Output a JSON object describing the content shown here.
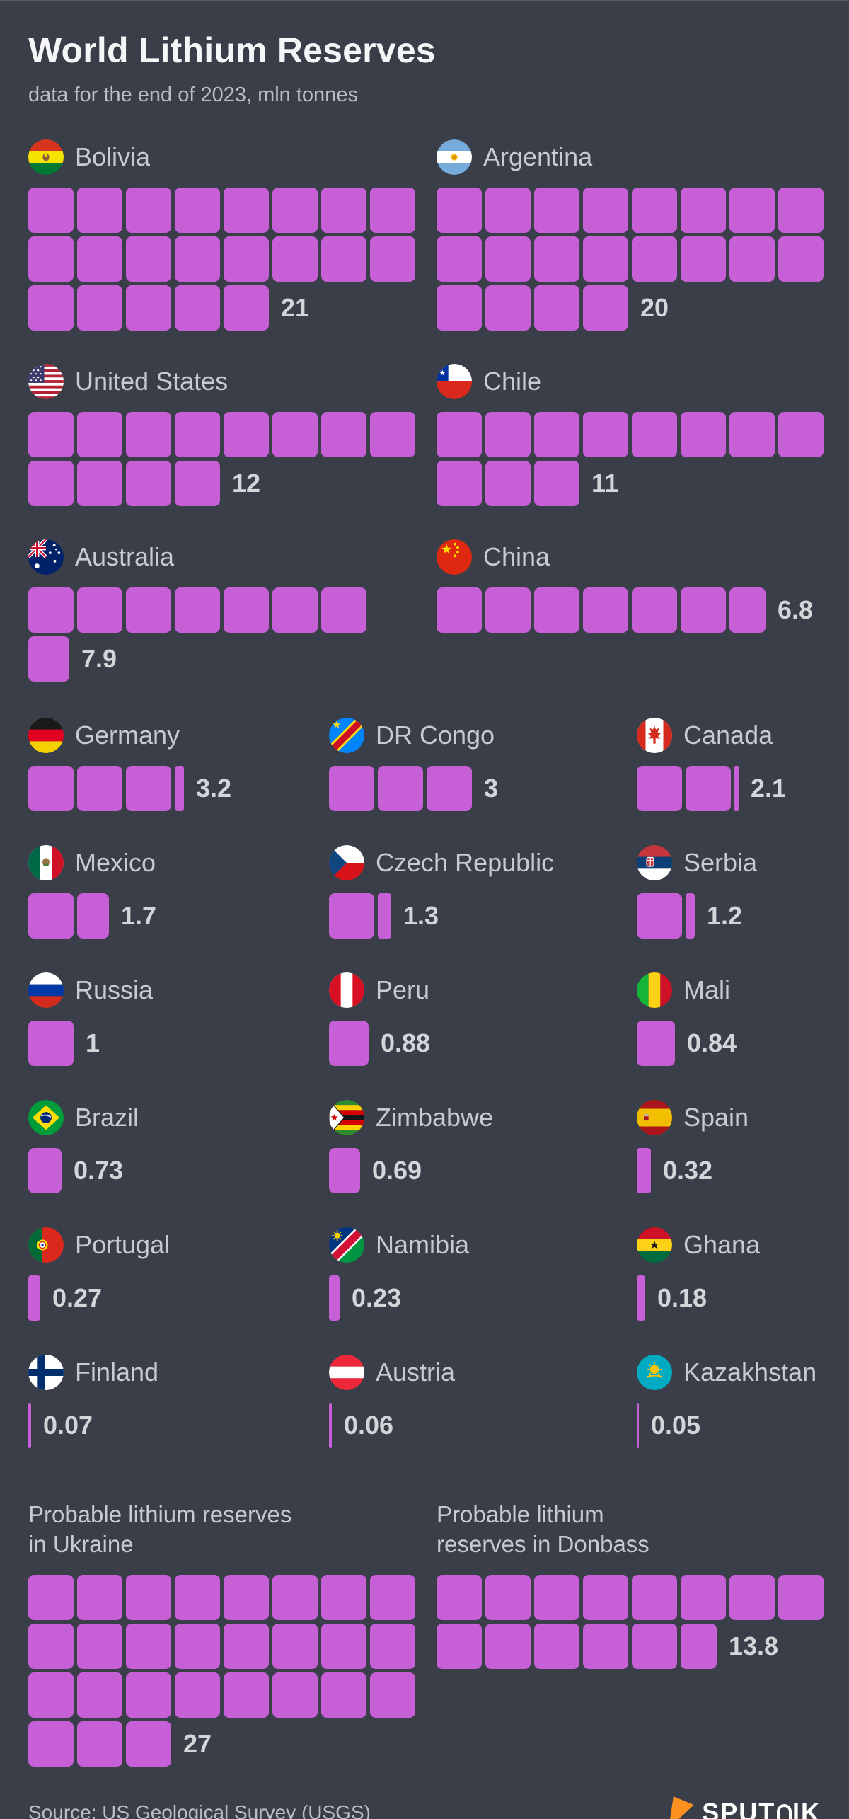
{
  "header": {
    "title": "World Lithium Reserves",
    "subtitle": "data for the end of 2023, mln tonnes"
  },
  "footer": {
    "source": "Source: US Geological Survey (USGS)",
    "brand": {
      "full": "SPUTNIK",
      "before": "SPUT",
      "after": "IK",
      "logo_icon": "sputnik-kite-icon"
    }
  },
  "colors": {
    "background": "#3a3e48",
    "square": "#c75fd6",
    "title": "#f5f6f8",
    "label": "#c7cad0",
    "value": "#d3d5d9",
    "subtitle": "#b9bdc4",
    "brand_orange": "#fb9021"
  },
  "chart_data": {
    "type": "waffle",
    "title": "World Lithium Reserves",
    "subtitle": "data for the end of 2023, mln tonnes",
    "unit": "mln tonnes",
    "square_value": 1,
    "layout": {
      "big_columns": 2,
      "small_columns": 3,
      "per_row_default": 8,
      "legend": "off",
      "grid": "off"
    },
    "countries": [
      {
        "name": "Bolivia",
        "flag": "bolivia",
        "flag_icon": "flag-bolivia-icon",
        "value": 21,
        "display": "21",
        "per_row": 8,
        "size": "big"
      },
      {
        "name": "Argentina",
        "flag": "argentina",
        "flag_icon": "flag-argentina-icon",
        "value": 20,
        "display": "20",
        "per_row": 8,
        "size": "big"
      },
      {
        "name": "United States",
        "flag": "us",
        "flag_icon": "flag-united-states-icon",
        "value": 12,
        "display": "12",
        "per_row": 8,
        "size": "big"
      },
      {
        "name": "Chile",
        "flag": "chile",
        "flag_icon": "flag-chile-icon",
        "value": 11,
        "display": "11",
        "per_row": 8,
        "size": "big"
      },
      {
        "name": "Australia",
        "flag": "australia",
        "flag_icon": "flag-australia-icon",
        "value": 7.9,
        "display": "7.9",
        "per_row": 7,
        "size": "big"
      },
      {
        "name": "China",
        "flag": "china",
        "flag_icon": "flag-china-icon",
        "value": 6.8,
        "display": "6.8",
        "per_row": 7,
        "size": "big"
      },
      {
        "name": "Germany",
        "flag": "germany",
        "flag_icon": "flag-germany-icon",
        "value": 3.2,
        "display": "3.2",
        "per_row": 8,
        "size": "small"
      },
      {
        "name": "DR Congo",
        "flag": "drcongo",
        "flag_icon": "flag-dr-congo-icon",
        "value": 3,
        "display": "3",
        "per_row": 8,
        "size": "small"
      },
      {
        "name": "Canada",
        "flag": "canada",
        "flag_icon": "flag-canada-icon",
        "value": 2.1,
        "display": "2.1",
        "per_row": 8,
        "size": "small"
      },
      {
        "name": "Mexico",
        "flag": "mexico",
        "flag_icon": "flag-mexico-icon",
        "value": 1.7,
        "display": "1.7",
        "per_row": 8,
        "size": "small"
      },
      {
        "name": "Czech Republic",
        "flag": "czech",
        "flag_icon": "flag-czech-republic-icon",
        "value": 1.3,
        "display": "1.3",
        "per_row": 8,
        "size": "small"
      },
      {
        "name": "Serbia",
        "flag": "serbia",
        "flag_icon": "flag-serbia-icon",
        "value": 1.2,
        "display": "1.2",
        "per_row": 8,
        "size": "small"
      },
      {
        "name": "Russia",
        "flag": "russia",
        "flag_icon": "flag-russia-icon",
        "value": 1,
        "display": "1",
        "per_row": 8,
        "size": "small"
      },
      {
        "name": "Peru",
        "flag": "peru",
        "flag_icon": "flag-peru-icon",
        "value": 0.88,
        "display": "0.88",
        "per_row": 8,
        "size": "small"
      },
      {
        "name": "Mali",
        "flag": "mali",
        "flag_icon": "flag-mali-icon",
        "value": 0.84,
        "display": "0.84",
        "per_row": 8,
        "size": "small"
      },
      {
        "name": "Brazil",
        "flag": "brazil",
        "flag_icon": "flag-brazil-icon",
        "value": 0.73,
        "display": "0.73",
        "per_row": 8,
        "size": "small"
      },
      {
        "name": "Zimbabwe",
        "flag": "zimbabwe",
        "flag_icon": "flag-zimbabwe-icon",
        "value": 0.69,
        "display": "0.69",
        "per_row": 8,
        "size": "small"
      },
      {
        "name": "Spain",
        "flag": "spain",
        "flag_icon": "flag-spain-icon",
        "value": 0.32,
        "display": "0.32",
        "per_row": 8,
        "size": "small"
      },
      {
        "name": "Portugal",
        "flag": "portugal",
        "flag_icon": "flag-portugal-icon",
        "value": 0.27,
        "display": "0.27",
        "per_row": 8,
        "size": "small"
      },
      {
        "name": "Namibia",
        "flag": "namibia",
        "flag_icon": "flag-namibia-icon",
        "value": 0.23,
        "display": "0.23",
        "per_row": 8,
        "size": "small"
      },
      {
        "name": "Ghana",
        "flag": "ghana",
        "flag_icon": "flag-ghana-icon",
        "value": 0.18,
        "display": "0.18",
        "per_row": 8,
        "size": "small"
      },
      {
        "name": "Finland",
        "flag": "finland",
        "flag_icon": "flag-finland-icon",
        "value": 0.07,
        "display": "0.07",
        "per_row": 8,
        "size": "small"
      },
      {
        "name": "Austria",
        "flag": "austria",
        "flag_icon": "flag-austria-icon",
        "value": 0.06,
        "display": "0.06",
        "per_row": 8,
        "size": "small"
      },
      {
        "name": "Kazakhstan",
        "flag": "kazakhstan",
        "flag_icon": "flag-kazakhstan-icon",
        "value": 0.05,
        "display": "0.05",
        "per_row": 8,
        "size": "small"
      }
    ],
    "special": [
      {
        "label_lines": [
          "Probable lithium reserves",
          "in Ukraine"
        ],
        "value": 27,
        "display": "27",
        "per_row": 8
      },
      {
        "label_lines": [
          "Probable lithium",
          "reserves in Donbass"
        ],
        "value": 13.8,
        "display": "13.8",
        "per_row": 8
      }
    ]
  }
}
